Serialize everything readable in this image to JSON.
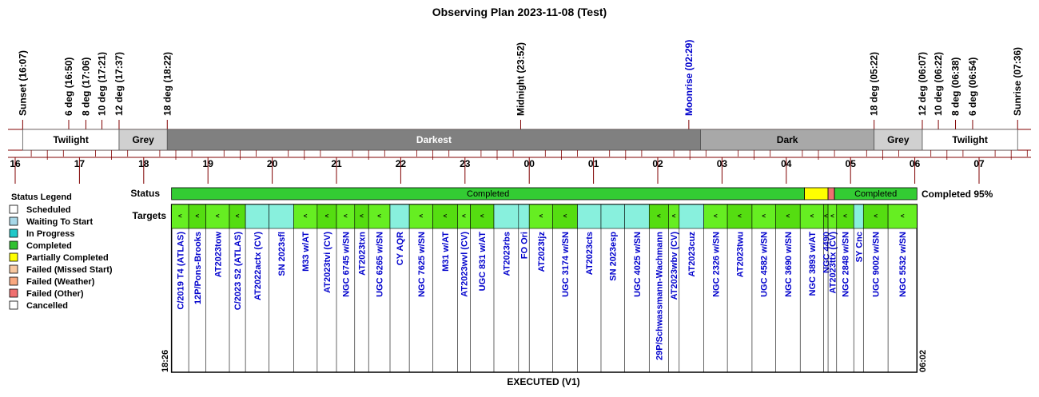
{
  "title": "Observing Plan 2023-11-08 (Test)",
  "events": [
    {
      "label": "Sunset (16:07)",
      "t": "16:07",
      "type": "sun"
    },
    {
      "label": "6 deg (16:50)",
      "t": "16:50",
      "type": "twilight"
    },
    {
      "label": "8 deg (17:06)",
      "t": "17:06",
      "type": "twilight"
    },
    {
      "label": "10 deg (17:21)",
      "t": "17:21",
      "type": "twilight"
    },
    {
      "label": "12 deg (17:37)",
      "t": "17:37",
      "type": "twilight"
    },
    {
      "label": "18 deg (18:22)",
      "t": "18:22",
      "type": "twilight"
    },
    {
      "label": "Midnight (23:52)",
      "t": "23:52",
      "type": "midnight"
    },
    {
      "label": "Moonrise (02:29)",
      "t": "02:29",
      "type": "moon"
    },
    {
      "label": "18 deg (05:22)",
      "t": "05:22",
      "type": "twilight"
    },
    {
      "label": "12 deg (06:07)",
      "t": "06:07",
      "type": "twilight"
    },
    {
      "label": "10 deg (06:22)",
      "t": "06:22",
      "type": "twilight"
    },
    {
      "label": "8 deg (06:38)",
      "t": "06:38",
      "type": "twilight"
    },
    {
      "label": "6 deg (06:54)",
      "t": "06:54",
      "type": "twilight"
    },
    {
      "label": "Sunrise (07:36)",
      "t": "07:36",
      "type": "sun"
    }
  ],
  "bands": [
    {
      "label": "Twilight",
      "start": "16:07",
      "end": "17:37",
      "color": "#ffffff",
      "text_color": "#000000"
    },
    {
      "label": "Grey",
      "start": "17:37",
      "end": "18:22",
      "color": "#d0d0d0",
      "text_color": "#000000"
    },
    {
      "label": "Darkest",
      "start": "18:22",
      "end": "02:40",
      "color": "#808080",
      "text_color": "#ffffff"
    },
    {
      "label": "Dark",
      "start": "02:40",
      "end": "05:22",
      "color": "#a8a8a8",
      "text_color": "#000000"
    },
    {
      "label": "Grey",
      "start": "05:22",
      "end": "06:07",
      "color": "#d0d0d0",
      "text_color": "#000000"
    },
    {
      "label": "Twilight",
      "start": "06:07",
      "end": "07:36",
      "color": "#ffffff",
      "text_color": "#000000"
    }
  ],
  "hours": [
    "16",
    "17",
    "18",
    "19",
    "20",
    "21",
    "22",
    "23",
    "00",
    "01",
    "02",
    "03",
    "04",
    "05",
    "06",
    "07"
  ],
  "status_label": "Status",
  "targets_label": "Targets",
  "completed_summary": "Completed 95%",
  "status_segments": [
    {
      "label": "Completed",
      "status": "Completed",
      "start": "18:26",
      "end": "04:17"
    },
    {
      "label": "",
      "status": "Partially Completed",
      "start": "04:17",
      "end": "04:39"
    },
    {
      "label": "",
      "status": "Failed (Other)",
      "start": "04:39",
      "end": "04:45"
    },
    {
      "label": "Completed",
      "status": "Completed",
      "start": "04:45",
      "end": "06:02"
    }
  ],
  "legend": {
    "title": "Status Legend",
    "items": [
      {
        "label": "Scheduled",
        "color": "#ffffff"
      },
      {
        "label": "Waiting To Start",
        "color": "#a8d8e8"
      },
      {
        "label": "In Progress",
        "color": "#20c8c8"
      },
      {
        "label": "Completed",
        "color": "#30c030"
      },
      {
        "label": "Partially Completed",
        "color": "#ffff00"
      },
      {
        "label": "Failed (Missed Start)",
        "color": "#f8c8a0"
      },
      {
        "label": "Failed (Weather)",
        "color": "#f8a880"
      },
      {
        "label": "Failed (Other)",
        "color": "#f07070"
      },
      {
        "label": "Cancelled",
        "color": "#ffffff"
      }
    ]
  },
  "targets": [
    {
      "name": "C/2019 T4 (ATLAS)",
      "start": "18:26",
      "end": "18:42",
      "status": "Completed",
      "mark": "<"
    },
    {
      "name": "12P/Pons-Brooks",
      "start": "18:42",
      "end": "18:58",
      "status": "Completed",
      "mark": "<"
    },
    {
      "name": "AT2023tow",
      "start": "18:58",
      "end": "19:20",
      "status": "Completed",
      "mark": "<"
    },
    {
      "name": "C/2023 S2 (ATLAS)",
      "start": "19:20",
      "end": "19:35",
      "status": "Completed",
      "mark": "<"
    },
    {
      "name": "AT2022actx (CV)",
      "start": "19:35",
      "end": "19:57",
      "status": "Waiting",
      "mark": ""
    },
    {
      "name": "SN 2023sfl",
      "start": "19:57",
      "end": "20:20",
      "status": "Waiting",
      "mark": ""
    },
    {
      "name": "M33 w/AT",
      "start": "20:20",
      "end": "20:42",
      "status": "Completed",
      "mark": "<"
    },
    {
      "name": "AT2023tvi (CV)",
      "start": "20:42",
      "end": "21:00",
      "status": "Completed",
      "mark": "<"
    },
    {
      "name": "NGC 6745 w/SN",
      "start": "21:00",
      "end": "21:17",
      "status": "Completed",
      "mark": "<"
    },
    {
      "name": "AT2023txn",
      "start": "21:17",
      "end": "21:30",
      "status": "Completed",
      "mark": "<"
    },
    {
      "name": "UGC 6265 w/SN",
      "start": "21:30",
      "end": "21:50",
      "status": "Completed",
      "mark": "<"
    },
    {
      "name": "CY AQR",
      "start": "21:50",
      "end": "22:08",
      "status": "Waiting",
      "mark": ""
    },
    {
      "name": "NGC 7625 w/SN",
      "start": "22:08",
      "end": "22:30",
      "status": "Completed",
      "mark": "<"
    },
    {
      "name": "M31 w/AT",
      "start": "22:30",
      "end": "22:53",
      "status": "Completed",
      "mark": "<"
    },
    {
      "name": "AT2023wvl (CV)",
      "start": "22:53",
      "end": "23:05",
      "status": "Completed",
      "mark": "<"
    },
    {
      "name": "UGC 831 w/AT",
      "start": "23:05",
      "end": "23:27",
      "status": "Completed",
      "mark": "<"
    },
    {
      "name": "AT2023rbs",
      "start": "23:27",
      "end": "23:50",
      "status": "Waiting",
      "mark": ""
    },
    {
      "name": "FO Ori",
      "start": "23:50",
      "end": "23:60",
      "status": "Waiting",
      "mark": ""
    },
    {
      "name": "AT2023tjz",
      "start": "00:00",
      "end": "00:22",
      "status": "Completed",
      "mark": "<"
    },
    {
      "name": "UGC 3174 w/SN",
      "start": "00:22",
      "end": "00:45",
      "status": "Completed",
      "mark": "<"
    },
    {
      "name": "AT2023cts",
      "start": "00:45",
      "end": "01:07",
      "status": "Waiting",
      "mark": ""
    },
    {
      "name": "SN 2023esp",
      "start": "01:07",
      "end": "01:29",
      "status": "Waiting",
      "mark": ""
    },
    {
      "name": "UGC 4025 w/SN",
      "start": "01:29",
      "end": "01:52",
      "status": "Waiting",
      "mark": ""
    },
    {
      "name": "29P/Schwassmann-Wachmann",
      "start": "01:52",
      "end": "02:10",
      "status": "Completed",
      "mark": "<"
    },
    {
      "name": "AT2023wbv (CV)",
      "start": "02:10",
      "end": "02:20",
      "status": "Completed",
      "mark": "<"
    },
    {
      "name": "AT2023cuz",
      "start": "02:20",
      "end": "02:43",
      "status": "Waiting",
      "mark": ""
    },
    {
      "name": "NGC 2326 w/SN",
      "start": "02:43",
      "end": "03:05",
      "status": "Completed",
      "mark": "<"
    },
    {
      "name": "AT2023twu",
      "start": "03:05",
      "end": "03:28",
      "status": "Completed",
      "mark": "<"
    },
    {
      "name": "UGC 4582 w/SN",
      "start": "03:28",
      "end": "03:50",
      "status": "Completed",
      "mark": "<"
    },
    {
      "name": "NGC 3690 w/SN",
      "start": "03:50",
      "end": "04:13",
      "status": "Completed",
      "mark": "<"
    },
    {
      "name": "NGC 3893 w/AT",
      "start": "04:13",
      "end": "04:35",
      "status": "Completed",
      "mark": "<"
    },
    {
      "name": "NGC 4490",
      "start": "04:35",
      "end": "04:39",
      "status": "Completed",
      "mark": "<"
    },
    {
      "name": "AT2023ttx (CV)",
      "start": "04:39",
      "end": "04:47",
      "status": "Completed",
      "mark": "<"
    },
    {
      "name": "NGC 2848 w/SN",
      "start": "04:47",
      "end": "05:03",
      "status": "Completed",
      "mark": "<"
    },
    {
      "name": "SY Cnc",
      "start": "05:03",
      "end": "05:12",
      "status": "Waiting",
      "mark": ""
    },
    {
      "name": "UGC 9002 w/SN",
      "start": "05:12",
      "end": "05:35",
      "status": "Completed",
      "mark": "<"
    },
    {
      "name": "NGC 5532 w/SN",
      "start": "05:35",
      "end": "06:02",
      "status": "Completed",
      "mark": "<"
    }
  ],
  "start_time_label": "18:26",
  "end_time_label": "06:02",
  "footer": "EXECUTED (V1)",
  "colors": {
    "completed_bar": "#33cc33",
    "target_completed": "#66ee22",
    "target_alt": "#55dd11",
    "target_waiting": "#88f0dd",
    "partial": "#ffff00",
    "failed_other": "#f07070",
    "moon_text": "#0000cc",
    "target_text": "#0000cc",
    "axis": "#800000"
  }
}
